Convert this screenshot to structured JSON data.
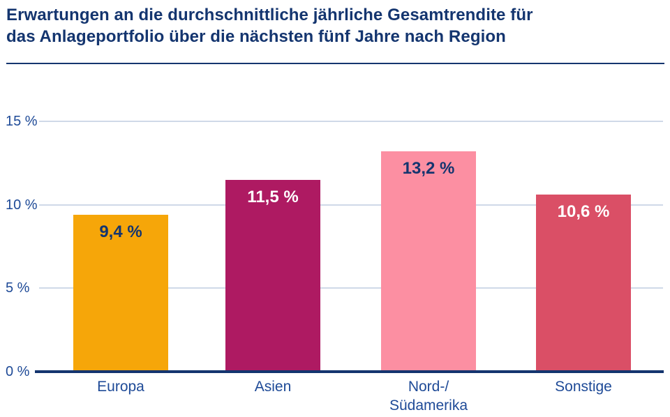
{
  "header": {
    "title_line1": "Erwartungen an die durchschnittliche jährliche Gesamtrendite für",
    "title_line2": "das Anlageportfolio über die nächsten fünf Jahre nach Region"
  },
  "chart_data": {
    "type": "bar",
    "title": "Erwartungen an die durchschnittliche jährliche Gesamtrendite für das Anlageportfolio über die nächsten fünf Jahre nach Region",
    "categories": [
      "Europa",
      "Asien",
      "Nord-/\nSüdamerika",
      "Sonstige"
    ],
    "values": [
      9.4,
      11.5,
      13.2,
      10.6
    ],
    "value_labels": [
      "9,4 %",
      "11,5 %",
      "13,2 %",
      "10,6 %"
    ],
    "bar_colors": [
      "#F6A609",
      "#AE1A62",
      "#FC8FA2",
      "#DA4F66"
    ],
    "value_label_colors": [
      "#14356F",
      "#FFFFFF",
      "#14356F",
      "#FFFFFF"
    ],
    "yticks": [
      0,
      5,
      10,
      15
    ],
    "ytick_labels": [
      "0 %",
      "5 %",
      "10 %",
      "15 %"
    ],
    "ylim": [
      0,
      16.5
    ],
    "xlabel": "",
    "ylabel": "",
    "grid": true,
    "legend": "none",
    "colors": {
      "background": "#FFFFFF",
      "title_navy": "#14356F",
      "axis_text": "#1E4A97",
      "gridline": "#CFD9E8",
      "baseline": "#14356F"
    }
  }
}
